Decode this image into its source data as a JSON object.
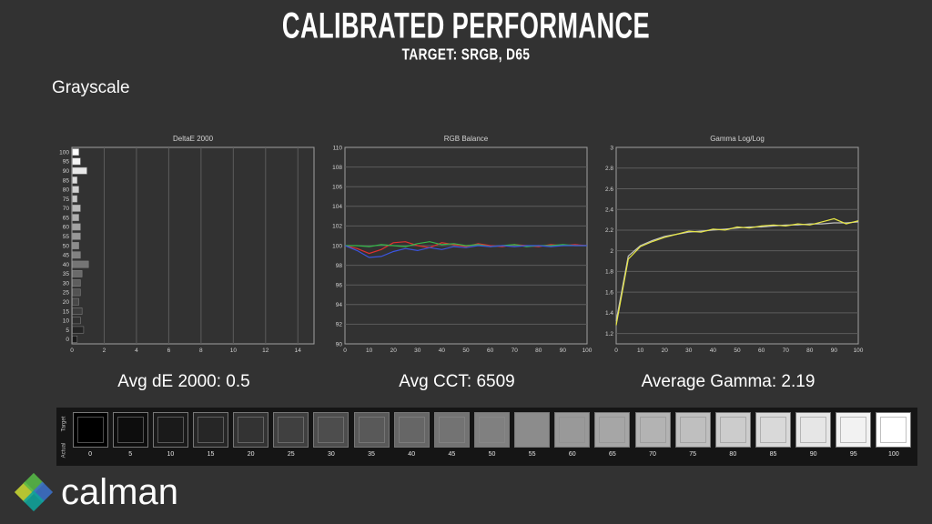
{
  "theme": {
    "background": "#323232"
  },
  "header": {
    "title": "CALIBRATED PERFORMANCE",
    "subtitle": "TARGET: SRGB, D65"
  },
  "section": {
    "label": "Grayscale"
  },
  "stats": [
    "Avg dE 2000: 0.5",
    "Avg CCT: 6509",
    "Average Gamma: 2.19"
  ],
  "grayscale_strip": {
    "row_labels": [
      "Target",
      "Actual"
    ],
    "steps": [
      0,
      5,
      10,
      15,
      20,
      25,
      30,
      35,
      40,
      45,
      50,
      55,
      60,
      65,
      70,
      75,
      80,
      85,
      90,
      95,
      100
    ]
  },
  "logo": {
    "text": "calman",
    "icon": "calman-flower-icon",
    "colors": {
      "green": "#57b947",
      "blue": "#3b6fc8",
      "teal": "#0fa39b",
      "yellow": "#c8d832"
    }
  },
  "chart_data": [
    {
      "type": "bar",
      "orientation": "horizontal",
      "title": "DeltaE 2000",
      "categories": [
        100,
        95,
        90,
        85,
        80,
        75,
        70,
        65,
        60,
        55,
        50,
        45,
        40,
        35,
        30,
        25,
        20,
        15,
        10,
        5,
        0
      ],
      "values": [
        0.4,
        0.5,
        0.9,
        0.3,
        0.4,
        0.3,
        0.5,
        0.4,
        0.5,
        0.5,
        0.4,
        0.5,
        1.0,
        0.6,
        0.5,
        0.5,
        0.4,
        0.6,
        0.5,
        0.7,
        0.3
      ],
      "xlim": [
        0,
        15
      ],
      "xticks": [
        0,
        2,
        4,
        6,
        8,
        10,
        12,
        14
      ],
      "grid": "vertical"
    },
    {
      "type": "line",
      "title": "RGB Balance",
      "x": [
        0,
        5,
        10,
        15,
        20,
        25,
        30,
        35,
        40,
        45,
        50,
        55,
        60,
        65,
        70,
        75,
        80,
        85,
        90,
        95,
        100
      ],
      "xlim": [
        0,
        100
      ],
      "xticks": [
        0,
        10,
        20,
        30,
        40,
        50,
        60,
        70,
        80,
        90,
        100
      ],
      "ylim": [
        90,
        110
      ],
      "yticks": [
        90,
        92,
        94,
        96,
        98,
        100,
        102,
        104,
        106,
        108,
        110
      ],
      "grid": "horizontal",
      "series": [
        {
          "name": "Red",
          "color": "#e03030",
          "values": [
            100.0,
            99.7,
            99.2,
            99.6,
            100.3,
            100.4,
            100.0,
            99.8,
            100.3,
            100.1,
            99.9,
            100.2,
            100.0,
            99.9,
            100.1,
            100.0,
            99.9,
            100.1,
            100.0,
            100.1,
            100.0
          ]
        },
        {
          "name": "Green",
          "color": "#35b94a",
          "values": [
            100.0,
            100.0,
            99.9,
            100.1,
            100.0,
            99.9,
            100.2,
            100.4,
            100.1,
            100.2,
            100.0,
            100.1,
            99.9,
            100.0,
            100.1,
            99.9,
            100.0,
            100.0,
            100.1,
            100.0,
            100.0
          ]
        },
        {
          "name": "Blue",
          "color": "#3b55e0",
          "values": [
            100.0,
            99.5,
            98.8,
            98.9,
            99.4,
            99.7,
            99.5,
            99.8,
            99.6,
            99.9,
            99.8,
            100.0,
            99.9,
            100.0,
            99.9,
            100.0,
            100.0,
            99.9,
            100.0,
            100.0,
            100.0
          ]
        }
      ]
    },
    {
      "type": "line",
      "title": "Gamma Log/Log",
      "x": [
        0,
        5,
        10,
        15,
        20,
        25,
        30,
        35,
        40,
        45,
        50,
        55,
        60,
        65,
        70,
        75,
        80,
        85,
        90,
        95,
        100
      ],
      "xlim": [
        0,
        100
      ],
      "xticks": [
        0,
        10,
        20,
        30,
        40,
        50,
        60,
        70,
        80,
        90,
        100
      ],
      "ylim": [
        1.1,
        3
      ],
      "yticks": [
        1.2,
        1.4,
        1.6,
        1.8,
        2,
        2.2,
        2.4,
        2.6,
        2.8,
        3
      ],
      "grid": "horizontal",
      "series": [
        {
          "name": "Target",
          "color": "#c0c0c0",
          "values": [
            1.32,
            1.95,
            2.05,
            2.1,
            2.14,
            2.16,
            2.18,
            2.19,
            2.2,
            2.21,
            2.22,
            2.23,
            2.23,
            2.24,
            2.25,
            2.25,
            2.26,
            2.26,
            2.27,
            2.27,
            2.28
          ]
        },
        {
          "name": "Gamma",
          "color": "#e8e845",
          "values": [
            1.28,
            1.92,
            2.04,
            2.09,
            2.13,
            2.16,
            2.19,
            2.18,
            2.21,
            2.2,
            2.23,
            2.22,
            2.24,
            2.25,
            2.24,
            2.26,
            2.25,
            2.28,
            2.31,
            2.26,
            2.29
          ]
        }
      ]
    }
  ]
}
